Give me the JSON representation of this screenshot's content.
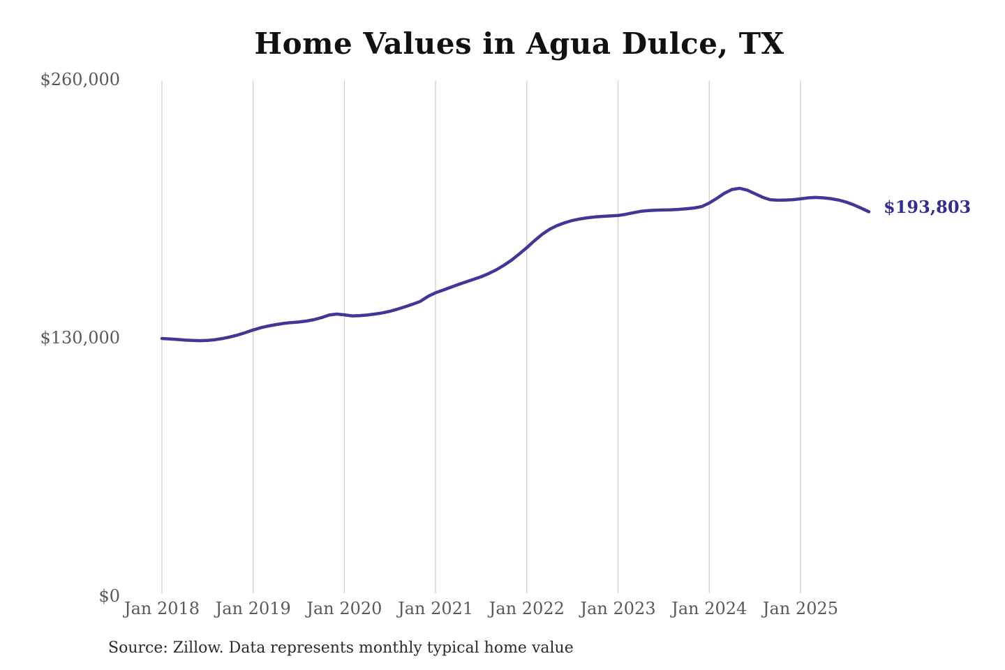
{
  "page": {
    "title": "Home Values in Agua Dulce, TX",
    "source_note": "Source: Zillow. Data represents monthly typical home value"
  },
  "chart_data": {
    "type": "line",
    "title": "Home Values in Agua Dulce, TX",
    "series_name": "Monthly typical home value",
    "unit": "USD",
    "legend": "none",
    "grid": "vertical-yearly",
    "ylim": [
      0,
      260000
    ],
    "y_ticks": [
      0,
      130000,
      260000
    ],
    "y_tick_labels": [
      "$0",
      "$130,000",
      "$260,000"
    ],
    "x_tick_labels": [
      "Jan 2018",
      "Jan 2019",
      "Jan 2020",
      "Jan 2021",
      "Jan 2022",
      "Jan 2023",
      "Jan 2024",
      "Jan 2025"
    ],
    "end_label": "$193,803",
    "end_value": 193803,
    "colors": {
      "line": "#3f3897",
      "end_label": "#322e8d",
      "grid": "#cccccc",
      "axis_text": "#595959",
      "title_text": "#111111",
      "source_text": "#2b2b2b"
    },
    "months": [
      "2018-01",
      "2018-02",
      "2018-03",
      "2018-04",
      "2018-05",
      "2018-06",
      "2018-07",
      "2018-08",
      "2018-09",
      "2018-10",
      "2018-11",
      "2018-12",
      "2019-01",
      "2019-02",
      "2019-03",
      "2019-04",
      "2019-05",
      "2019-06",
      "2019-07",
      "2019-08",
      "2019-09",
      "2019-10",
      "2019-11",
      "2019-12",
      "2020-01",
      "2020-02",
      "2020-03",
      "2020-04",
      "2020-05",
      "2020-06",
      "2020-07",
      "2020-08",
      "2020-09",
      "2020-10",
      "2020-11",
      "2020-12",
      "2021-01",
      "2021-02",
      "2021-03",
      "2021-04",
      "2021-05",
      "2021-06",
      "2021-07",
      "2021-08",
      "2021-09",
      "2021-10",
      "2021-11",
      "2021-12",
      "2022-01",
      "2022-02",
      "2022-03",
      "2022-04",
      "2022-05",
      "2022-06",
      "2022-07",
      "2022-08",
      "2022-09",
      "2022-10",
      "2022-11",
      "2022-12",
      "2023-01",
      "2023-02",
      "2023-03",
      "2023-04",
      "2023-05",
      "2023-06",
      "2023-07",
      "2023-08",
      "2023-09",
      "2023-10",
      "2023-11",
      "2023-12",
      "2024-01",
      "2024-02",
      "2024-03",
      "2024-04",
      "2024-05",
      "2024-06",
      "2024-07",
      "2024-08",
      "2024-09",
      "2024-10",
      "2024-11",
      "2024-12",
      "2025-01",
      "2025-02",
      "2025-03",
      "2025-04",
      "2025-05",
      "2025-06",
      "2025-07",
      "2025-08",
      "2025-09",
      "2025-10"
    ],
    "values": [
      130000,
      129800,
      129500,
      129200,
      129000,
      128900,
      129000,
      129400,
      130000,
      130800,
      131800,
      133000,
      134300,
      135400,
      136300,
      137000,
      137600,
      138000,
      138300,
      138800,
      139500,
      140500,
      141800,
      142300,
      141900,
      141400,
      141500,
      141800,
      142300,
      142900,
      143700,
      144800,
      146000,
      147300,
      148700,
      151200,
      153000,
      154400,
      155800,
      157200,
      158500,
      159800,
      161100,
      162700,
      164600,
      166900,
      169500,
      172500,
      175700,
      179200,
      182400,
      185000,
      186900,
      188300,
      189400,
      190200,
      190800,
      191200,
      191500,
      191700,
      191900,
      192500,
      193300,
      194000,
      194400,
      194600,
      194700,
      194800,
      195000,
      195300,
      195700,
      196400,
      198200,
      200600,
      203100,
      205000,
      205600,
      204700,
      202900,
      201100,
      199900,
      199600,
      199700,
      199900,
      200300,
      200800,
      201000,
      200800,
      200400,
      199700,
      198700,
      197300,
      195600,
      193803
    ]
  }
}
